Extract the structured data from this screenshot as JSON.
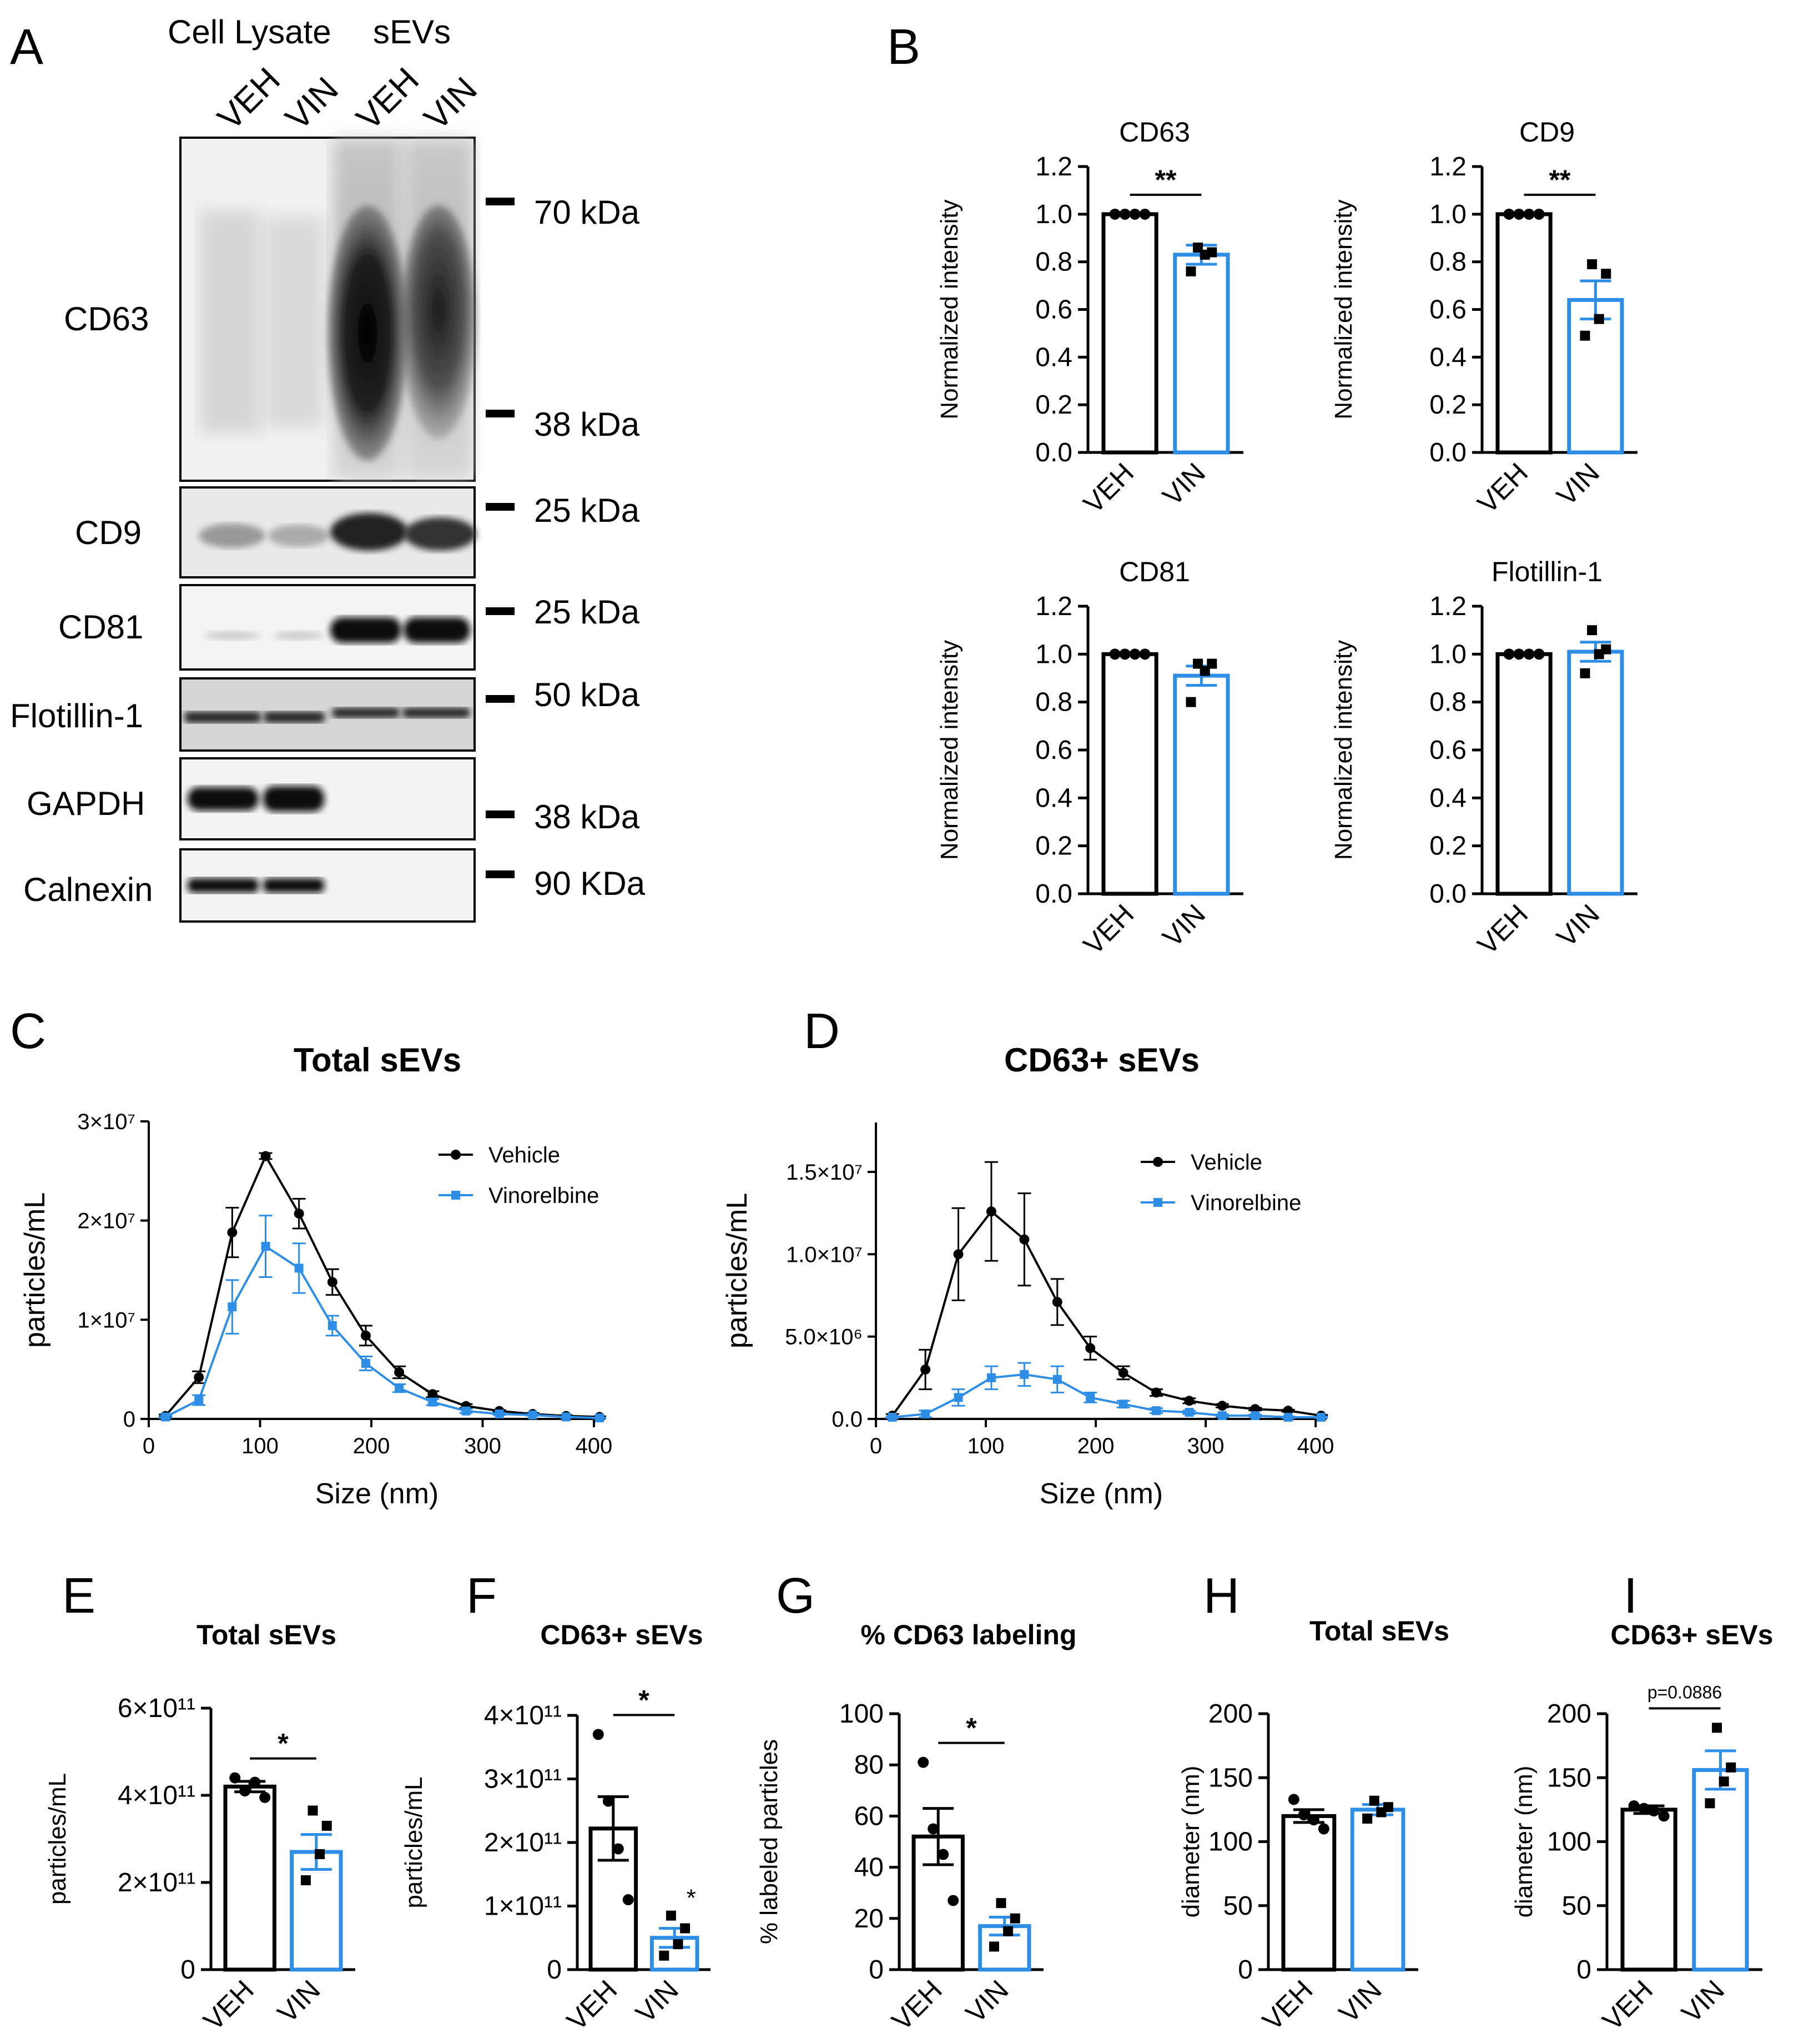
{
  "colors": {
    "veh": "#000000",
    "vin": "#2E8EE6"
  },
  "panels": {
    "A": {
      "letter": "A",
      "headers": {
        "lysate": "Cell Lysate",
        "sevs": "sEVs"
      },
      "lanes": [
        "VEH",
        "VIN",
        "VEH",
        "VIN"
      ],
      "blots": [
        {
          "label": "CD63",
          "markers": [
            "70 kDa",
            "38 kDa"
          ]
        },
        {
          "label": "CD9",
          "markers": [
            "25 kDa"
          ]
        },
        {
          "label": "CD81",
          "markers": [
            "25 kDa"
          ]
        },
        {
          "label": "Flotillin-1",
          "markers": [
            "50 kDa"
          ]
        },
        {
          "label": "GAPDH",
          "markers": [
            "38 kDa"
          ]
        },
        {
          "label": "Calnexin",
          "markers": [
            "90 KDa"
          ]
        }
      ]
    },
    "B": {
      "letter": "B"
    },
    "C": {
      "letter": "C"
    },
    "D": {
      "letter": "D"
    },
    "E": {
      "letter": "E"
    },
    "F": {
      "letter": "F"
    },
    "G": {
      "letter": "G"
    },
    "H": {
      "letter": "H"
    },
    "I": {
      "letter": "I"
    }
  },
  "chart_data": [
    {
      "id": "B1",
      "type": "bar",
      "title": "CD63",
      "ylabel": "Normalized intensity",
      "categories": [
        "VEH",
        "VIN"
      ],
      "values": [
        1.0,
        0.83
      ],
      "errors": [
        0.0,
        0.04
      ],
      "points": [
        [
          1.0,
          1.0,
          1.0,
          1.0
        ],
        [
          0.86,
          0.84,
          0.83,
          0.76
        ]
      ],
      "ylim": [
        0,
        1.2
      ],
      "yticks": [
        0.0,
        0.2,
        0.4,
        0.6,
        0.8,
        1.0,
        1.2
      ],
      "tick_labels": [
        "0.0",
        "0.2",
        "0.4",
        "0.6",
        "0.8",
        "1.0",
        "1.2"
      ],
      "significance": "**"
    },
    {
      "id": "B2",
      "type": "bar",
      "title": "CD9",
      "ylabel": "Normalized intensity",
      "categories": [
        "VEH",
        "VIN"
      ],
      "values": [
        1.0,
        0.64
      ],
      "errors": [
        0.0,
        0.08
      ],
      "points": [
        [
          1.0,
          1.0,
          1.0,
          1.0
        ],
        [
          0.79,
          0.75,
          0.56,
          0.49
        ]
      ],
      "ylim": [
        0,
        1.2
      ],
      "yticks": [
        0.0,
        0.2,
        0.4,
        0.6,
        0.8,
        1.0,
        1.2
      ],
      "tick_labels": [
        "0.0",
        "0.2",
        "0.4",
        "0.6",
        "0.8",
        "1.0",
        "1.2"
      ],
      "significance": "**"
    },
    {
      "id": "B3",
      "type": "bar",
      "title": "CD81",
      "ylabel": "Normalized intensity",
      "categories": [
        "VEH",
        "VIN"
      ],
      "values": [
        1.0,
        0.91
      ],
      "errors": [
        0.0,
        0.04
      ],
      "points": [
        [
          1.0,
          1.0,
          1.0,
          1.0
        ],
        [
          0.96,
          0.96,
          0.93,
          0.8
        ]
      ],
      "ylim": [
        0,
        1.2
      ],
      "yticks": [
        0.0,
        0.2,
        0.4,
        0.6,
        0.8,
        1.0,
        1.2
      ],
      "tick_labels": [
        "0.0",
        "0.2",
        "0.4",
        "0.6",
        "0.8",
        "1.0",
        "1.2"
      ],
      "significance": ""
    },
    {
      "id": "B4",
      "type": "bar",
      "title": "Flotillin-1",
      "ylabel": "Normalized intensity",
      "categories": [
        "VEH",
        "VIN"
      ],
      "values": [
        1.0,
        1.01
      ],
      "errors": [
        0.0,
        0.04
      ],
      "points": [
        [
          1.0,
          1.0,
          1.0,
          1.0
        ],
        [
          1.1,
          1.02,
          1.0,
          0.92
        ]
      ],
      "ylim": [
        0,
        1.2
      ],
      "yticks": [
        0.0,
        0.2,
        0.4,
        0.6,
        0.8,
        1.0,
        1.2
      ],
      "tick_labels": [
        "0.0",
        "0.2",
        "0.4",
        "0.6",
        "0.8",
        "1.0",
        "1.2"
      ],
      "significance": ""
    },
    {
      "id": "C",
      "type": "line",
      "title": "Total sEVs",
      "xlabel": "Size (nm)",
      "ylabel": "particles/mL",
      "x": [
        15,
        45,
        75,
        105,
        135,
        165,
        195,
        225,
        255,
        285,
        315,
        345,
        375,
        405
      ],
      "xlim": [
        0,
        410
      ],
      "xticks": [
        0,
        100,
        200,
        300,
        400
      ],
      "xtick_labels": [
        "0",
        "100",
        "200",
        "300",
        "400"
      ],
      "ylim": [
        0,
        30000000
      ],
      "yticks": [
        0,
        10000000,
        20000000,
        30000000
      ],
      "ytick_labels": [
        "0",
        "1×10⁷",
        "2×10⁷",
        "3×10⁷"
      ],
      "legend": "top-right",
      "series": [
        {
          "name": "Vehicle",
          "color": "#000000",
          "marker": "circle",
          "values": [
            300000,
            4200000,
            18800000,
            26500000,
            20700000,
            13800000,
            8400000,
            4700000,
            2500000,
            1300000,
            800000,
            500000,
            300000,
            200000
          ],
          "errors": [
            150000,
            600000,
            2500000,
            300000,
            1500000,
            1300000,
            1000000,
            600000,
            300000,
            200000,
            100000,
            100000,
            80000,
            60000
          ]
        },
        {
          "name": "Vinorelbine",
          "color": "#2E8EE6",
          "marker": "square",
          "values": [
            200000,
            1900000,
            11300000,
            17400000,
            15200000,
            9400000,
            5600000,
            3100000,
            1700000,
            800000,
            500000,
            400000,
            200000,
            100000
          ],
          "errors": [
            100000,
            500000,
            2700000,
            3100000,
            2500000,
            1000000,
            700000,
            400000,
            300000,
            200000,
            100000,
            80000,
            60000,
            50000
          ]
        }
      ]
    },
    {
      "id": "D",
      "type": "line",
      "title": "CD63+ sEVs",
      "xlabel": "Size (nm)",
      "ylabel": "particles/mL",
      "x": [
        15,
        45,
        75,
        105,
        135,
        165,
        195,
        225,
        255,
        285,
        315,
        345,
        375,
        405
      ],
      "xlim": [
        0,
        410
      ],
      "xticks": [
        0,
        100,
        200,
        300,
        400
      ],
      "xtick_labels": [
        "0",
        "100",
        "200",
        "300",
        "400"
      ],
      "ylim": [
        0,
        18000000
      ],
      "yticks": [
        0,
        5000000,
        10000000,
        15000000
      ],
      "ytick_labels": [
        "0.0",
        "5.0×10⁶",
        "1.0×10⁷",
        "1.5×10⁷"
      ],
      "legend": "top-right",
      "series": [
        {
          "name": "Vehicle",
          "color": "#000000",
          "marker": "circle",
          "values": [
            200000,
            3000000,
            10000000,
            12600000,
            10900000,
            7100000,
            4300000,
            2800000,
            1600000,
            1100000,
            800000,
            600000,
            500000,
            200000
          ],
          "errors": [
            100000,
            1200000,
            2800000,
            3000000,
            2800000,
            1400000,
            700000,
            400000,
            200000,
            150000,
            100000,
            80000,
            60000,
            50000
          ]
        },
        {
          "name": "Vinorelbine",
          "color": "#2E8EE6",
          "marker": "square",
          "values": [
            100000,
            300000,
            1300000,
            2500000,
            2700000,
            2400000,
            1300000,
            900000,
            500000,
            400000,
            200000,
            200000,
            100000,
            100000
          ],
          "errors": [
            50000,
            200000,
            500000,
            700000,
            700000,
            800000,
            300000,
            200000,
            150000,
            100000,
            80000,
            60000,
            50000,
            40000
          ]
        }
      ]
    },
    {
      "id": "E",
      "type": "bar",
      "title": "Total sEVs",
      "ylabel": "particles/mL",
      "categories": [
        "VEH",
        "VIN"
      ],
      "values": [
        420000000000,
        270000000000
      ],
      "errors": [
        12000000000,
        40000000000
      ],
      "points": [
        [
          440000000000,
          410000000000,
          430000000000,
          395000000000
        ],
        [
          365000000000,
          330000000000,
          265000000000,
          205000000000
        ]
      ],
      "ylim": [
        0,
        600000000000
      ],
      "yticks": [
        0,
        200000000000,
        400000000000,
        600000000000
      ],
      "tick_labels": [
        "0",
        "2×10¹¹",
        "4×10¹¹",
        "6×10¹¹"
      ],
      "significance": "*"
    },
    {
      "id": "F",
      "type": "bar",
      "title": "CD63+ sEVs",
      "ylabel": "particles/mL",
      "categories": [
        "VEH",
        "VIN"
      ],
      "values": [
        222000000000,
        50000000000
      ],
      "errors": [
        50000000000,
        15000000000
      ],
      "points": [
        [
          370000000000,
          265000000000,
          190000000000,
          110000000000
        ],
        [
          85000000000,
          65000000000,
          40000000000,
          22000000000
        ]
      ],
      "ylim": [
        0,
        400000000000
      ],
      "yticks": [
        0,
        100000000000,
        200000000000,
        300000000000,
        400000000000
      ],
      "tick_labels": [
        "0",
        "1×10¹¹",
        "2×10¹¹",
        "3×10¹¹",
        "4×10¹¹"
      ],
      "significance": "*",
      "extra_mark": "*"
    },
    {
      "id": "G",
      "type": "bar",
      "title": "% CD63 labeling",
      "ylabel": "% labeled particles",
      "categories": [
        "VEH",
        "VIN"
      ],
      "values": [
        52,
        17
      ],
      "errors": [
        11,
        3.5
      ],
      "points": [
        [
          81,
          55,
          45,
          27
        ],
        [
          26,
          20,
          15,
          9
        ]
      ],
      "ylim": [
        0,
        100
      ],
      "yticks": [
        0,
        20,
        40,
        60,
        80,
        100
      ],
      "tick_labels": [
        "0",
        "20",
        "40",
        "60",
        "80",
        "100"
      ],
      "significance": "*"
    },
    {
      "id": "H",
      "type": "bar",
      "title": "Total sEVs",
      "ylabel": "diameter (nm)",
      "categories": [
        "VEH",
        "VIN"
      ],
      "values": [
        120,
        125
      ],
      "errors": [
        5,
        4
      ],
      "points": [
        [
          133,
          121,
          117,
          110
        ],
        [
          132,
          127,
          123,
          118
        ]
      ],
      "ylim": [
        0,
        200
      ],
      "yticks": [
        0,
        50,
        100,
        150,
        200
      ],
      "tick_labels": [
        "0",
        "50",
        "100",
        "150",
        "200"
      ],
      "significance": ""
    },
    {
      "id": "I",
      "type": "bar",
      "title": "CD63+ sEVs",
      "ylabel": "diameter (nm)",
      "categories": [
        "VEH",
        "VIN"
      ],
      "values": [
        125,
        156
      ],
      "errors": [
        3,
        15
      ],
      "points": [
        [
          128,
          126,
          124,
          120
        ],
        [
          189,
          158,
          147,
          130
        ]
      ],
      "ylim": [
        0,
        200
      ],
      "yticks": [
        0,
        50,
        100,
        150,
        200
      ],
      "tick_labels": [
        "0",
        "50",
        "100",
        "150",
        "200"
      ],
      "significance": "p=0.0886"
    }
  ]
}
